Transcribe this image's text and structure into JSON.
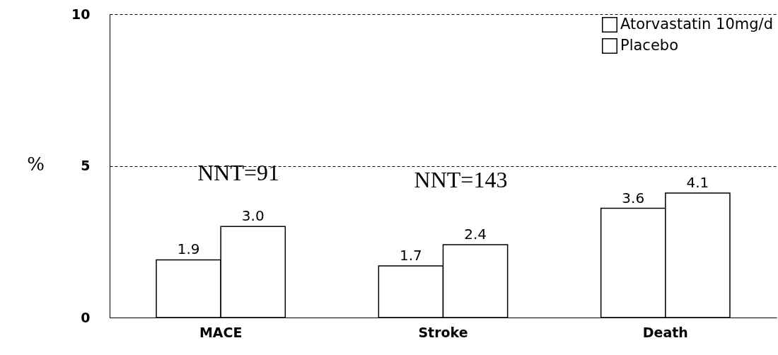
{
  "chart_data": {
    "type": "bar",
    "ylabel": "%",
    "categories": [
      "MACE",
      "Stroke",
      "Death"
    ],
    "series": [
      {
        "name": "Atorvastatin 10mg/d",
        "color": "#ffffff",
        "values": [
          1.9,
          1.7,
          3.6
        ],
        "value_labels": [
          "1.9",
          "1.7",
          "3.6"
        ]
      },
      {
        "name": "Placebo",
        "color": "#ffffff",
        "values": [
          3.0,
          2.4,
          4.1
        ],
        "value_labels": [
          "3.0",
          "2.4",
          "4.1"
        ]
      }
    ],
    "ylim": [
      0,
      10
    ],
    "yticks": [
      0,
      5,
      10
    ],
    "grid": "y",
    "legend": "top right",
    "annotations": [
      "NNT=91",
      "NNT=143"
    ]
  }
}
